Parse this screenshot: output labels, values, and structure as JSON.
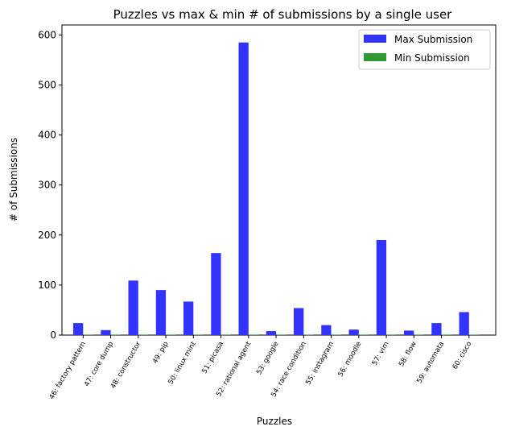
{
  "chart_data": {
    "type": "bar",
    "title": "Puzzles vs max & min # of submissions by a single user",
    "xlabel": "Puzzles",
    "ylabel": "# of Submissions",
    "ylim": [
      0,
      620
    ],
    "yticks": [
      "0",
      "100",
      "200",
      "300",
      "400",
      "500",
      "600"
    ],
    "grid": false,
    "legend_position": "top-right",
    "categories": [
      "46: factory pattern",
      "47: core dump",
      "48: constructor",
      "49: pip",
      "50: linux mint",
      "51: picasa",
      "52: rational agent",
      "53: google",
      "54: race condition",
      "55: instagram",
      "56: moodle",
      "57: vim",
      "58: flow",
      "59: automata",
      "60: cisco"
    ],
    "series": [
      {
        "name": "Max Submission",
        "color": "#3333ff",
        "values": [
          24,
          10,
          109,
          90,
          67,
          164,
          585,
          8,
          54,
          20,
          11,
          190,
          9,
          24,
          46
        ]
      },
      {
        "name": "Min Submission",
        "color": "#339933",
        "values": [
          1,
          1,
          1,
          1,
          1,
          1,
          1,
          1,
          1,
          1,
          1,
          1,
          1,
          1,
          1
        ]
      }
    ]
  }
}
